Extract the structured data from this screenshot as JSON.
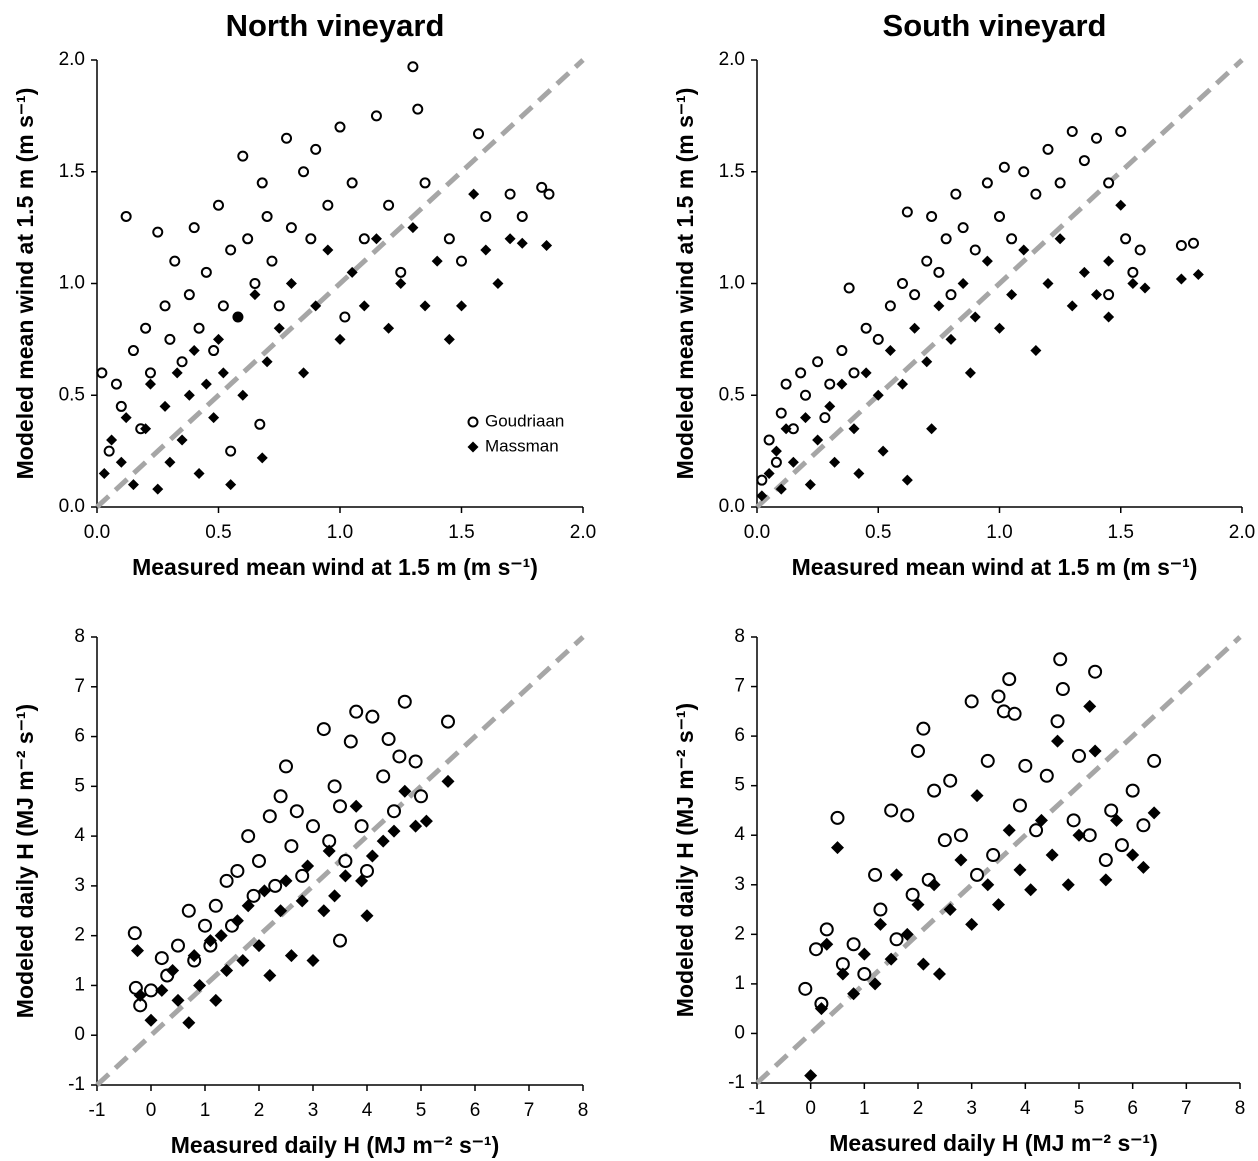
{
  "chart_data": [
    {
      "type": "scatter",
      "title": "North vineyard",
      "x_label": "Measured mean wind at 1.5 m (m s⁻¹)",
      "y_label": "Modeled mean wind at 1.5 m (m s⁻¹)",
      "xlim": [
        0,
        2
      ],
      "ylim": [
        0,
        2
      ],
      "xticks": [
        {
          "value": 0,
          "label": "0.0"
        },
        {
          "value": 0.5,
          "label": "0.5"
        },
        {
          "value": 1,
          "label": "1.0"
        },
        {
          "value": 1.5,
          "label": "1.5"
        },
        {
          "value": 2,
          "label": "2.0"
        }
      ],
      "yticks": [
        {
          "value": 0,
          "label": "0.0"
        },
        {
          "value": 0.5,
          "label": "0.5"
        },
        {
          "value": 1,
          "label": "1.0"
        },
        {
          "value": 1.5,
          "label": "1.5"
        },
        {
          "value": 2,
          "label": "2.0"
        }
      ],
      "identity_line": true,
      "legend": "lower right",
      "series": [
        {
          "name": "Goudriaan",
          "color": "#000000",
          "marker": "open-circle",
          "x": [
            0.02,
            0.05,
            0.08,
            0.1,
            0.12,
            0.15,
            0.18,
            0.2,
            0.22,
            0.25,
            0.28,
            0.3,
            0.32,
            0.35,
            0.38,
            0.4,
            0.42,
            0.45,
            0.48,
            0.5,
            0.52,
            0.55,
            0.58,
            0.6,
            0.62,
            0.65,
            0.68,
            0.7,
            0.72,
            0.75,
            0.78,
            0.8,
            0.85,
            0.88,
            0.9,
            0.95,
            1.0,
            1.02,
            1.05,
            1.1,
            1.15,
            1.2,
            1.25,
            1.3,
            1.32,
            1.35,
            1.45,
            1.5,
            1.57,
            1.6,
            1.7,
            1.75,
            1.83,
            1.86,
            0.55,
            0.67
          ],
          "values": [
            0.6,
            0.25,
            0.55,
            0.45,
            1.3,
            0.7,
            0.35,
            0.8,
            0.6,
            1.23,
            0.9,
            0.75,
            1.1,
            0.65,
            0.95,
            1.25,
            0.8,
            1.05,
            0.7,
            1.35,
            0.9,
            1.15,
            0.85,
            1.57,
            1.2,
            1.0,
            1.45,
            1.3,
            1.1,
            0.9,
            1.65,
            1.25,
            1.5,
            1.2,
            1.6,
            1.35,
            1.7,
            0.85,
            1.45,
            1.2,
            1.75,
            1.35,
            1.05,
            1.97,
            1.78,
            1.45,
            1.2,
            1.1,
            1.67,
            1.3,
            1.4,
            1.3,
            1.43,
            1.4,
            0.25,
            0.37
          ]
        },
        {
          "name": "Massman",
          "color": "#000000",
          "marker": "filled-diamond",
          "x": [
            0.03,
            0.06,
            0.1,
            0.12,
            0.15,
            0.2,
            0.22,
            0.25,
            0.28,
            0.3,
            0.33,
            0.35,
            0.38,
            0.4,
            0.42,
            0.45,
            0.48,
            0.5,
            0.52,
            0.55,
            0.58,
            0.6,
            0.65,
            0.68,
            0.7,
            0.75,
            0.8,
            0.85,
            0.9,
            0.95,
            1.0,
            1.05,
            1.1,
            1.15,
            1.2,
            1.25,
            1.3,
            1.35,
            1.4,
            1.45,
            1.5,
            1.55,
            1.6,
            1.65,
            1.7,
            1.75,
            1.85
          ],
          "values": [
            0.15,
            0.3,
            0.2,
            0.4,
            0.1,
            0.35,
            0.55,
            0.08,
            0.45,
            0.2,
            0.6,
            0.3,
            0.5,
            0.7,
            0.15,
            0.55,
            0.4,
            0.75,
            0.6,
            0.1,
            0.85,
            0.5,
            0.95,
            0.22,
            0.65,
            0.8,
            1.0,
            0.6,
            0.9,
            1.15,
            0.75,
            1.05,
            0.9,
            1.2,
            0.8,
            1.0,
            1.25,
            0.9,
            1.1,
            0.75,
            0.9,
            1.4,
            1.15,
            1.0,
            1.2,
            1.18,
            1.17
          ]
        }
      ]
    },
    {
      "type": "scatter",
      "title": "South vineyard",
      "x_label": "Measured mean wind at 1.5 m (m s⁻¹)",
      "y_label": "Modeled mean wind at 1.5 m (m s⁻¹)",
      "xlim": [
        0,
        2
      ],
      "ylim": [
        0,
        2
      ],
      "xticks": [
        {
          "value": 0,
          "label": "0.0"
        },
        {
          "value": 0.5,
          "label": "0.5"
        },
        {
          "value": 1,
          "label": "1.0"
        },
        {
          "value": 1.5,
          "label": "1.5"
        },
        {
          "value": 2,
          "label": "2.0"
        }
      ],
      "yticks": [
        {
          "value": 0,
          "label": "0.0"
        },
        {
          "value": 0.5,
          "label": "0.5"
        },
        {
          "value": 1,
          "label": "1.0"
        },
        {
          "value": 1.5,
          "label": "1.5"
        },
        {
          "value": 2,
          "label": "2.0"
        }
      ],
      "identity_line": true,
      "series": [
        {
          "color": "#000000",
          "marker": "open-circle",
          "x": [
            0.02,
            0.05,
            0.08,
            0.1,
            0.12,
            0.15,
            0.18,
            0.2,
            0.25,
            0.28,
            0.3,
            0.35,
            0.38,
            0.4,
            0.45,
            0.5,
            0.55,
            0.6,
            0.62,
            0.65,
            0.7,
            0.72,
            0.75,
            0.78,
            0.8,
            0.82,
            0.85,
            0.9,
            0.95,
            1.0,
            1.02,
            1.05,
            1.1,
            1.15,
            1.2,
            1.25,
            1.3,
            1.35,
            1.4,
            1.45,
            1.5,
            1.52,
            1.55,
            1.58,
            1.75,
            1.8,
            1.45
          ],
          "values": [
            0.12,
            0.3,
            0.2,
            0.42,
            0.55,
            0.35,
            0.6,
            0.5,
            0.65,
            0.4,
            0.55,
            0.7,
            0.98,
            0.6,
            0.8,
            0.75,
            0.9,
            1.0,
            1.32,
            0.95,
            1.1,
            1.3,
            1.05,
            1.2,
            0.95,
            1.4,
            1.25,
            1.15,
            1.45,
            1.3,
            1.52,
            1.2,
            1.5,
            1.4,
            1.6,
            1.45,
            1.68,
            1.55,
            1.65,
            1.45,
            1.68,
            1.2,
            1.05,
            1.15,
            1.17,
            1.18,
            0.95
          ]
        },
        {
          "color": "#000000",
          "marker": "filled-diamond",
          "x": [
            0.02,
            0.05,
            0.08,
            0.1,
            0.12,
            0.15,
            0.2,
            0.22,
            0.25,
            0.3,
            0.32,
            0.35,
            0.4,
            0.42,
            0.45,
            0.5,
            0.52,
            0.55,
            0.6,
            0.62,
            0.65,
            0.7,
            0.72,
            0.75,
            0.8,
            0.85,
            0.88,
            0.9,
            0.95,
            1.0,
            1.05,
            1.1,
            1.15,
            1.2,
            1.25,
            1.3,
            1.35,
            1.4,
            1.45,
            1.5,
            1.55,
            1.6,
            1.75,
            1.82,
            1.45
          ],
          "values": [
            0.05,
            0.15,
            0.25,
            0.08,
            0.35,
            0.2,
            0.4,
            0.1,
            0.3,
            0.45,
            0.2,
            0.55,
            0.35,
            0.15,
            0.6,
            0.5,
            0.25,
            0.7,
            0.55,
            0.12,
            0.8,
            0.65,
            0.35,
            0.9,
            0.75,
            1.0,
            0.6,
            0.85,
            1.1,
            0.8,
            0.95,
            1.15,
            0.7,
            1.0,
            1.2,
            0.9,
            1.05,
            0.95,
            1.1,
            1.35,
            1.0,
            0.98,
            1.02,
            1.04,
            0.85
          ]
        }
      ]
    },
    {
      "type": "scatter",
      "x_label": "Measured daily H (MJ m⁻² s⁻¹)",
      "y_label": "Modeled daily H (MJ m⁻² s⁻¹)",
      "xlim": [
        -1,
        8
      ],
      "ylim": [
        -1,
        8
      ],
      "xticks": [
        -1,
        0,
        1,
        2,
        3,
        4,
        5,
        6,
        7,
        8
      ],
      "yticks": [
        -1,
        0,
        1,
        2,
        3,
        4,
        5,
        6,
        7,
        8
      ],
      "identity_line": true,
      "series": [
        {
          "color": "#000000",
          "marker": "open-circle",
          "x": [
            -0.3,
            -0.28,
            -0.2,
            0,
            0.2,
            0.3,
            0.5,
            0.7,
            0.8,
            1.0,
            1.1,
            1.2,
            1.4,
            1.5,
            1.6,
            1.8,
            1.9,
            2.0,
            2.2,
            2.3,
            2.4,
            2.5,
            2.6,
            2.7,
            2.8,
            3.0,
            3.2,
            3.3,
            3.4,
            3.5,
            3.6,
            3.7,
            3.8,
            3.9,
            4.0,
            4.1,
            4.3,
            4.4,
            4.5,
            4.6,
            4.7,
            4.9,
            5.0,
            5.5,
            3.5
          ],
          "values": [
            2.05,
            0.95,
            0.6,
            0.9,
            1.55,
            1.2,
            1.8,
            2.5,
            1.5,
            2.2,
            1.8,
            2.6,
            3.1,
            2.2,
            3.3,
            4.0,
            2.8,
            3.5,
            4.4,
            3.0,
            4.8,
            5.4,
            3.8,
            4.5,
            3.2,
            4.2,
            6.15,
            3.9,
            5.0,
            4.6,
            3.5,
            5.9,
            6.5,
            4.2,
            3.3,
            6.4,
            5.2,
            5.95,
            4.5,
            5.6,
            6.7,
            5.5,
            4.8,
            6.3,
            1.9
          ]
        },
        {
          "color": "#000000",
          "marker": "filled-diamond",
          "x": [
            -0.25,
            -0.2,
            0,
            0.2,
            0.4,
            0.5,
            0.7,
            0.8,
            0.9,
            1.1,
            1.2,
            1.3,
            1.4,
            1.6,
            1.7,
            1.8,
            2.0,
            2.1,
            2.2,
            2.4,
            2.5,
            2.6,
            2.8,
            2.9,
            3.0,
            3.2,
            3.3,
            3.4,
            3.6,
            3.8,
            3.9,
            4.0,
            4.1,
            4.3,
            4.5,
            4.7,
            4.9,
            5.1,
            5.5
          ],
          "values": [
            1.7,
            0.8,
            0.3,
            0.9,
            1.3,
            0.7,
            0.25,
            1.6,
            1.0,
            1.9,
            0.7,
            2.0,
            1.3,
            2.3,
            1.5,
            2.6,
            1.8,
            2.9,
            1.2,
            2.5,
            3.1,
            1.6,
            2.7,
            3.4,
            1.5,
            2.5,
            3.7,
            2.8,
            3.2,
            4.6,
            3.1,
            2.4,
            3.6,
            3.9,
            4.1,
            4.9,
            4.2,
            4.3,
            5.1
          ]
        }
      ]
    },
    {
      "type": "scatter",
      "x_label": "Measured daily H (MJ m⁻² s⁻¹)",
      "y_label": "Modeled daily H (MJ m⁻² s⁻¹)",
      "xlim": [
        -1,
        8
      ],
      "ylim": [
        -1,
        8
      ],
      "xticks": [
        -1,
        0,
        1,
        2,
        3,
        4,
        5,
        6,
        7,
        8
      ],
      "yticks": [
        -1,
        0,
        1,
        2,
        3,
        4,
        5,
        6,
        7,
        8
      ],
      "identity_line": true,
      "series": [
        {
          "color": "#000000",
          "marker": "open-circle",
          "x": [
            -0.1,
            0.1,
            0.2,
            0.3,
            0.5,
            0.6,
            0.8,
            1.0,
            1.2,
            1.3,
            1.5,
            1.6,
            1.8,
            1.9,
            2.0,
            2.1,
            2.2,
            2.3,
            2.5,
            2.6,
            2.8,
            3.0,
            3.1,
            3.3,
            3.4,
            3.5,
            3.6,
            3.7,
            3.8,
            3.9,
            4.0,
            4.2,
            4.4,
            4.6,
            4.65,
            4.7,
            4.9,
            5.0,
            5.2,
            5.3,
            5.5,
            5.6,
            5.8,
            6.0,
            6.2,
            6.4
          ],
          "values": [
            0.9,
            1.7,
            0.6,
            2.1,
            4.35,
            1.4,
            1.8,
            1.2,
            3.2,
            2.5,
            4.5,
            1.9,
            4.4,
            2.8,
            5.7,
            6.15,
            3.1,
            4.9,
            3.9,
            5.1,
            4.0,
            6.7,
            3.2,
            5.5,
            3.6,
            6.8,
            6.5,
            7.15,
            6.45,
            4.6,
            5.4,
            4.1,
            5.2,
            6.3,
            7.55,
            6.95,
            4.3,
            5.6,
            4.0,
            7.3,
            3.5,
            4.5,
            3.8,
            4.9,
            4.2,
            5.5
          ]
        },
        {
          "color": "#000000",
          "marker": "filled-diamond",
          "x": [
            0,
            0.2,
            0.3,
            0.5,
            0.6,
            0.8,
            1.0,
            1.2,
            1.3,
            1.5,
            1.6,
            1.8,
            2.0,
            2.1,
            2.3,
            2.4,
            2.6,
            2.8,
            3.0,
            3.1,
            3.3,
            3.5,
            3.7,
            3.9,
            4.1,
            4.3,
            4.5,
            4.6,
            4.8,
            5.0,
            5.2,
            5.3,
            5.5,
            5.7,
            6.0,
            6.2,
            6.4
          ],
          "values": [
            -0.85,
            0.5,
            1.8,
            3.75,
            1.2,
            0.8,
            1.6,
            1.0,
            2.2,
            1.5,
            3.2,
            2.0,
            2.6,
            1.4,
            3.0,
            1.2,
            2.5,
            3.5,
            2.2,
            4.8,
            3.0,
            2.6,
            4.1,
            3.3,
            2.9,
            4.3,
            3.6,
            5.9,
            3.0,
            4.0,
            6.6,
            5.7,
            3.1,
            4.3,
            3.6,
            3.35,
            4.45
          ]
        }
      ]
    }
  ]
}
